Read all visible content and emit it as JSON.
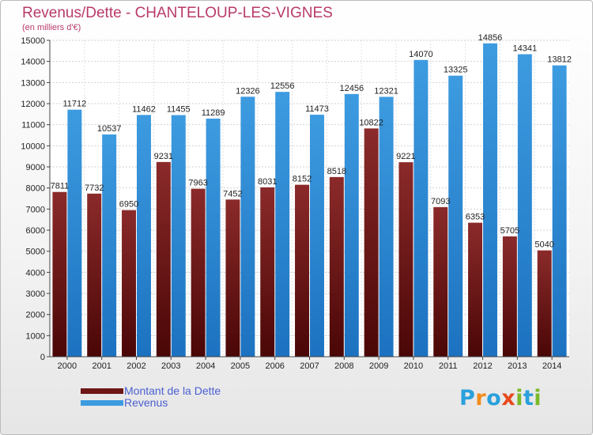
{
  "chart_data": {
    "type": "bar",
    "title": "Revenus/Dette - CHANTELOUP-LES-VIGNES",
    "subtitle": "(en milliers d'€)",
    "categories": [
      "2000",
      "2001",
      "2002",
      "2003",
      "2004",
      "2005",
      "2006",
      "2007",
      "2008",
      "2009",
      "2010",
      "2011",
      "2012",
      "2013",
      "2014"
    ],
    "series": [
      {
        "name": "Montant de la Dette",
        "color": "#8b2a2a",
        "values": [
          7811,
          7732,
          6950,
          9231,
          7963,
          7452,
          8031,
          8152,
          8518,
          10822,
          9221,
          7093,
          6353,
          5705,
          5040
        ],
        "labels": [
          "7811",
          "7732",
          "6950",
          "9231",
          "7963",
          "7452",
          "8031",
          "8152",
          "8518",
          "10822",
          "9221",
          "7093",
          "6353",
          "5705",
          "5040"
        ]
      },
      {
        "name": "Revenus",
        "color": "#3d9be0",
        "values": [
          11712,
          10537,
          11462,
          11455,
          11289,
          12326,
          12556,
          11473,
          12456,
          12321,
          14070,
          13325,
          14856,
          14341,
          13812
        ],
        "labels": [
          "11712",
          "10537",
          "11462",
          "11455",
          "11289",
          "12326",
          "12556",
          "11473",
          "12456",
          "12321",
          "14070",
          "13325",
          "14856",
          "14341",
          "13812"
        ]
      }
    ],
    "ylim": [
      0,
      15000
    ],
    "ytick_step": 1000,
    "grid": true,
    "legend_position": "bottom-left"
  },
  "legend": {
    "items": [
      {
        "label": "Montant de la Dette",
        "color": "#6e1515"
      },
      {
        "label": "Revenus",
        "color": "#3d9be0"
      }
    ]
  },
  "logo": {
    "letters": [
      "P",
      "r",
      "o",
      "x",
      "i",
      "t",
      "i"
    ],
    "colors": [
      "#2aa0dc",
      "#f28c1c",
      "#2aa0dc",
      "#e8491d",
      "#7ab929",
      "#2aa0dc",
      "#7ab929"
    ]
  }
}
